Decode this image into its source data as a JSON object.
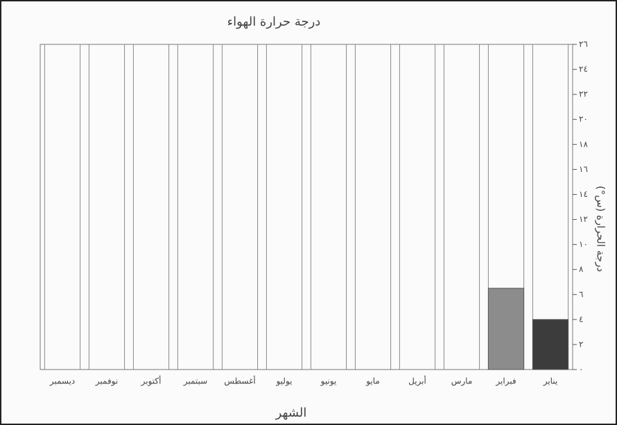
{
  "chart_data": {
    "type": "bar",
    "title": "درجة حرارة الهواء",
    "x_label": "الشهر",
    "y_label": "درجة الحرارة (س°)",
    "categories": [
      "يناير",
      "فبراير",
      "مارس",
      "أبريل",
      "مايو",
      "يونيو",
      "يوليو",
      "أغسطس",
      "سبتمبر",
      "أكتوبر",
      "نوفمبر",
      "ديسمبر"
    ],
    "values": [
      4,
      6.5,
      null,
      null,
      null,
      null,
      null,
      null,
      null,
      null,
      null,
      null
    ],
    "colors": [
      "#3c3c3c",
      "#8c8c8c",
      "#8c8c8c",
      "#8c8c8c",
      "#8c8c8c",
      "#8c8c8c",
      "#8c8c8c",
      "#8c8c8c",
      "#8c8c8c",
      "#8c8c8c",
      "#8c8c8c",
      "#8c8c8c"
    ],
    "ylim": [
      0,
      26
    ],
    "yticks": [
      {
        "value": 0,
        "label": "٠"
      },
      {
        "value": 2,
        "label": "٢"
      },
      {
        "value": 4,
        "label": "٤"
      },
      {
        "value": 6,
        "label": "٦"
      },
      {
        "value": 8,
        "label": "٨"
      },
      {
        "value": 10,
        "label": "١٠"
      },
      {
        "value": 12,
        "label": "١٢"
      },
      {
        "value": 14,
        "label": "١٤"
      },
      {
        "value": 16,
        "label": "١٦"
      },
      {
        "value": 18,
        "label": "١٨"
      },
      {
        "value": 20,
        "label": "٢٠"
      },
      {
        "value": 22,
        "label": "٢٢"
      },
      {
        "value": 24,
        "label": "٢٤"
      },
      {
        "value": 26,
        "label": "٢٦"
      }
    ],
    "direction": "rtl"
  }
}
